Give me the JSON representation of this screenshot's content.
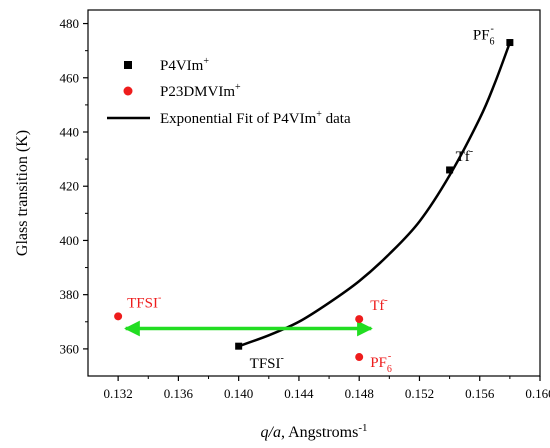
{
  "chart_data": {
    "type": "scatter",
    "xlabel_main": "q/a",
    "xlabel_rest": ", Angstroms",
    "xlabel_sup": "-1",
    "ylabel": "Glass transition (K)",
    "xlim": [
      0.13,
      0.16
    ],
    "ylim": [
      350,
      485
    ],
    "x_ticks": [
      "0.132",
      "0.136",
      "0.140",
      "0.144",
      "0.148",
      "0.152",
      "0.156",
      "0.160"
    ],
    "x_tick_values": [
      0.132,
      0.136,
      0.14,
      0.144,
      0.148,
      0.152,
      0.156,
      0.16
    ],
    "y_ticks": [
      "360",
      "380",
      "400",
      "420",
      "440",
      "460",
      "480"
    ],
    "y_tick_values": [
      360,
      380,
      400,
      420,
      440,
      460,
      480
    ],
    "grid": false,
    "legend_position": "top-left",
    "series": [
      {
        "name": "P4VIm",
        "name_sup": "+",
        "marker": "square",
        "color": "#000000",
        "points": [
          {
            "x": 0.14,
            "y": 361,
            "label": "TFSI",
            "label_sup": "-",
            "label_sub": "",
            "label_color": "#000000"
          },
          {
            "x": 0.154,
            "y": 426,
            "label": "Tf",
            "label_sup": "-",
            "label_sub": "",
            "label_color": "#000000"
          },
          {
            "x": 0.158,
            "y": 473,
            "label": "PF",
            "label_sup": "-",
            "label_sub": "6",
            "label_color": "#000000"
          }
        ]
      },
      {
        "name": "P23DMVIm",
        "name_sup": "+",
        "marker": "circle",
        "color": "#ee1c1c",
        "points": [
          {
            "x": 0.132,
            "y": 372,
            "label": "TFSI",
            "label_sup": "-",
            "label_sub": "",
            "label_color": "#ee1c1c"
          },
          {
            "x": 0.148,
            "y": 371,
            "label": "Tf",
            "label_sup": "-",
            "label_sub": "",
            "label_color": "#ee1c1c"
          },
          {
            "x": 0.148,
            "y": 357,
            "label": "PF",
            "label_sup": "-",
            "label_sub": "6",
            "label_color": "#ee1c1c"
          }
        ]
      }
    ],
    "fit": {
      "name_pre": "Exponential Fit of P4VIm",
      "name_sup": "+",
      "name_post": " data",
      "type": "exponential",
      "color": "#000000",
      "x_range": [
        0.14,
        0.158
      ],
      "curve_points": [
        [
          0.14,
          361
        ],
        [
          0.142,
          365
        ],
        [
          0.144,
          370
        ],
        [
          0.146,
          377
        ],
        [
          0.148,
          385
        ],
        [
          0.15,
          395
        ],
        [
          0.152,
          407
        ],
        [
          0.154,
          424
        ],
        [
          0.156,
          445
        ],
        [
          0.157,
          458
        ],
        [
          0.158,
          473
        ]
      ]
    },
    "annotation_arrow": {
      "type": "double-headed",
      "color": "#22dd22",
      "x_start": 0.1325,
      "x_end": 0.1488,
      "y": 367.5
    }
  }
}
